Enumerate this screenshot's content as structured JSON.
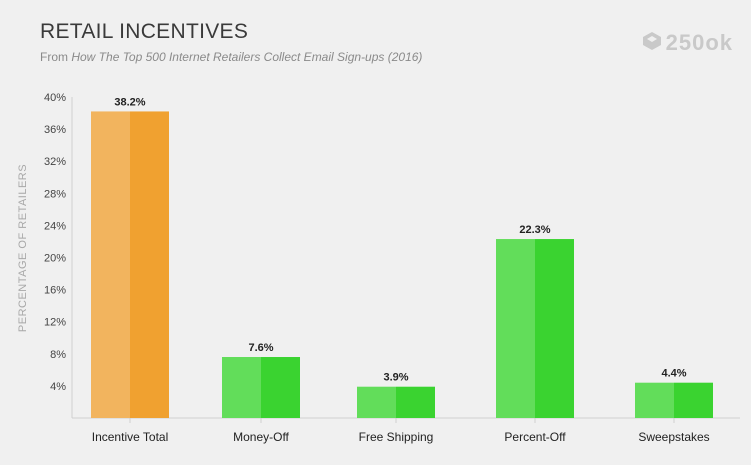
{
  "header": {
    "title": "RETAIL INCENTIVES",
    "subtitle_prefix": "From",
    "subtitle_source": "How The Top 500 Internet Retailers Collect Email Sign-ups (2016)"
  },
  "logo": {
    "text": "250ok",
    "icon": "250ok-logo-icon"
  },
  "colors": {
    "orange_light": "#f2b45e",
    "orange_dark": "#f0a130",
    "green_light": "#62dd5a",
    "green_dark": "#3ad330",
    "background": "#f0f0f0"
  },
  "chart_data": {
    "type": "bar",
    "title": "RETAIL INCENTIVES",
    "ylabel": "PERCENTAGE OF RETAILERS",
    "xlabel": "",
    "ylim": [
      0,
      40
    ],
    "yticks": [
      "4%",
      "8%",
      "12%",
      "16%",
      "20%",
      "24%",
      "28%",
      "32%",
      "36%",
      "40%"
    ],
    "ytick_values": [
      4,
      8,
      12,
      16,
      20,
      24,
      28,
      32,
      36,
      40
    ],
    "categories": [
      "Incentive Total",
      "Money-Off",
      "Free Shipping",
      "Percent-Off",
      "Sweepstakes"
    ],
    "values": [
      38.2,
      7.6,
      3.9,
      22.3,
      4.4
    ],
    "value_labels": [
      "38.2%",
      "7.6%",
      "3.9%",
      "22.3%",
      "4.4%"
    ],
    "bar_colors": [
      "orange",
      "green",
      "green",
      "green",
      "green"
    ],
    "grid": false,
    "legend": "none"
  }
}
